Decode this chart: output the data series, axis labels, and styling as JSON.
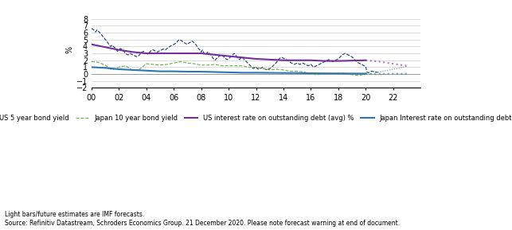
{
  "title": "",
  "ylabel": "%",
  "ylim": [
    -2,
    9
  ],
  "yticks": [
    -2,
    -1,
    0,
    1,
    2,
    3,
    4,
    5,
    6,
    7,
    8
  ],
  "xlim": [
    2000,
    2024
  ],
  "xticks": [
    2000,
    2002,
    2004,
    2006,
    2008,
    2010,
    2012,
    2014,
    2016,
    2018,
    2020,
    2022
  ],
  "xticklabels": [
    "00",
    "02",
    "04",
    "06",
    "08",
    "10",
    "12",
    "14",
    "16",
    "18",
    "20",
    "22"
  ],
  "background_color": "#ffffff",
  "grid_color": "#cccccc",
  "footnote1": "Light bars/future estimates are IMF forecasts.",
  "footnote2": "Source: Refinitiv Datastream, Schroders Economics Group. 21 December 2020. Please note forecast warning at end of document.",
  "legend_items": [
    {
      "label": "US 5 year bond yield",
      "color": "#1f3864",
      "linestyle": "dashed"
    },
    {
      "label": "Japan 10 year bond yield",
      "color": "#70ad47",
      "linestyle": "dashed"
    },
    {
      "label": "US interest rate on outstanding debt (avg) %",
      "color": "#7030a0",
      "linestyle": "solid"
    },
    {
      "label": "Japan Interest rate on outstanding debt (avg)",
      "color": "#2e75b6",
      "linestyle": "solid"
    }
  ],
  "us_5yr_yield": {
    "years": [
      2000.0,
      2000.1,
      2000.2,
      2000.3,
      2000.4,
      2000.5,
      2000.6,
      2000.7,
      2000.8,
      2000.9,
      2001.0,
      2001.1,
      2001.2,
      2001.3,
      2001.4,
      2001.5,
      2001.6,
      2001.7,
      2001.8,
      2001.9,
      2002.0,
      2002.1,
      2002.2,
      2002.3,
      2002.4,
      2002.5,
      2002.6,
      2002.7,
      2002.8,
      2002.9,
      2003.0,
      2003.1,
      2003.2,
      2003.3,
      2003.4,
      2003.5,
      2003.6,
      2003.7,
      2003.8,
      2003.9,
      2004.0,
      2004.1,
      2004.2,
      2004.3,
      2004.4,
      2004.5,
      2004.6,
      2004.7,
      2004.8,
      2004.9,
      2005.0,
      2005.1,
      2005.2,
      2005.3,
      2005.4,
      2005.5,
      2005.6,
      2005.7,
      2005.8,
      2005.9,
      2006.0,
      2006.1,
      2006.2,
      2006.3,
      2006.4,
      2006.5,
      2006.6,
      2006.7,
      2006.8,
      2006.9,
      2007.0,
      2007.1,
      2007.2,
      2007.3,
      2007.4,
      2007.5,
      2007.6,
      2007.7,
      2007.8,
      2007.9,
      2008.0,
      2008.1,
      2008.2,
      2008.3,
      2008.4,
      2008.5,
      2008.6,
      2008.7,
      2008.8,
      2008.9,
      2009.0,
      2009.1,
      2009.2,
      2009.3,
      2009.4,
      2009.5,
      2009.6,
      2009.7,
      2009.8,
      2009.9,
      2010.0,
      2010.1,
      2010.2,
      2010.3,
      2010.4,
      2010.5,
      2010.6,
      2010.7,
      2010.8,
      2010.9,
      2011.0,
      2011.1,
      2011.2,
      2011.3,
      2011.4,
      2011.5,
      2011.6,
      2011.7,
      2011.8,
      2011.9,
      2012.0,
      2012.1,
      2012.2,
      2012.3,
      2012.4,
      2012.5,
      2012.6,
      2012.7,
      2012.8,
      2012.9,
      2013.0,
      2013.1,
      2013.2,
      2013.3,
      2013.4,
      2013.5,
      2013.6,
      2013.7,
      2013.8,
      2013.9,
      2014.0,
      2014.1,
      2014.2,
      2014.3,
      2014.4,
      2014.5,
      2014.6,
      2014.7,
      2014.8,
      2014.9,
      2015.0,
      2015.1,
      2015.2,
      2015.3,
      2015.4,
      2015.5,
      2015.6,
      2015.7,
      2015.8,
      2015.9,
      2016.0,
      2016.1,
      2016.2,
      2016.3,
      2016.4,
      2016.5,
      2016.6,
      2016.7,
      2016.8,
      2016.9,
      2017.0,
      2017.1,
      2017.2,
      2017.3,
      2017.4,
      2017.5,
      2017.6,
      2017.7,
      2017.8,
      2017.9,
      2018.0,
      2018.1,
      2018.2,
      2018.3,
      2018.4,
      2018.5,
      2018.6,
      2018.7,
      2018.8,
      2018.9,
      2019.0,
      2019.1,
      2019.2,
      2019.3,
      2019.4,
      2019.5,
      2019.6,
      2019.7,
      2019.8,
      2019.9,
      2020.0,
      2020.1,
      2020.2,
      2020.3,
      2020.4,
      2020.5,
      2020.6,
      2020.7,
      2020.8,
      2020.9
    ],
    "values": [
      6.6,
      6.5,
      6.3,
      6.1,
      6.4,
      6.2,
      6.0,
      5.8,
      5.5,
      5.3,
      5.0,
      4.8,
      4.5,
      4.2,
      4.0,
      4.2,
      4.0,
      3.8,
      3.5,
      3.3,
      3.5,
      3.7,
      3.6,
      3.4,
      3.2,
      3.0,
      2.8,
      2.8,
      3.0,
      2.9,
      2.8,
      2.7,
      2.6,
      2.5,
      2.6,
      2.8,
      3.0,
      3.2,
      3.3,
      3.1,
      3.0,
      2.9,
      3.1,
      3.3,
      3.5,
      3.5,
      3.4,
      3.3,
      3.2,
      3.3,
      3.4,
      3.5,
      3.6,
      3.6,
      3.5,
      3.7,
      3.8,
      4.0,
      4.1,
      4.2,
      4.3,
      4.4,
      4.6,
      4.8,
      5.0,
      4.9,
      4.8,
      4.6,
      4.5,
      4.4,
      4.3,
      4.5,
      4.6,
      4.8,
      4.7,
      4.5,
      4.3,
      4.0,
      3.7,
      3.5,
      3.2,
      3.5,
      3.0,
      2.8,
      3.0,
      3.2,
      3.0,
      2.8,
      2.5,
      2.2,
      2.0,
      2.2,
      2.4,
      2.6,
      2.7,
      2.8,
      2.6,
      2.4,
      2.2,
      2.1,
      2.2,
      2.4,
      2.6,
      2.8,
      3.0,
      2.8,
      2.5,
      2.3,
      2.1,
      2.3,
      2.4,
      2.2,
      2.0,
      1.8,
      1.6,
      1.4,
      1.2,
      1.0,
      0.8,
      0.9,
      1.0,
      0.8,
      0.7,
      0.8,
      0.9,
      1.0,
      0.8,
      0.7,
      0.6,
      0.7,
      0.8,
      0.9,
      1.1,
      1.3,
      1.5,
      1.7,
      2.0,
      2.2,
      2.4,
      2.4,
      2.3,
      2.2,
      2.1,
      2.0,
      1.8,
      1.7,
      1.6,
      1.5,
      1.4,
      1.5,
      1.6,
      1.5,
      1.4,
      1.5,
      1.6,
      1.5,
      1.4,
      1.3,
      1.2,
      1.3,
      1.4,
      1.2,
      1.0,
      1.1,
      1.2,
      1.3,
      1.4,
      1.5,
      1.6,
      1.7,
      1.8,
      1.9,
      2.0,
      2.1,
      2.0,
      1.9,
      1.8,
      1.9,
      2.0,
      2.1,
      2.2,
      2.4,
      2.6,
      2.8,
      2.9,
      3.0,
      2.9,
      2.8,
      2.7,
      2.6,
      2.5,
      2.3,
      2.1,
      1.9,
      1.7,
      1.6,
      1.5,
      1.4,
      1.3,
      1.2,
      1.1,
      0.3,
      0.2,
      0.3,
      0.4,
      0.4,
      0.35,
      0.3,
      0.28,
      0.25
    ]
  },
  "us_5yr_yield_forecast": {
    "years": [
      2020.9,
      2021.0,
      2021.5,
      2022.0,
      2022.5,
      2023.0
    ],
    "values": [
      0.25,
      0.3,
      0.5,
      0.7,
      0.9,
      1.1
    ]
  },
  "japan_10yr_yield": {
    "years": [
      2000.0,
      2000.5,
      2001.0,
      2001.5,
      2002.0,
      2002.5,
      2003.0,
      2003.5,
      2004.0,
      2004.5,
      2005.0,
      2005.5,
      2006.0,
      2006.5,
      2007.0,
      2007.5,
      2008.0,
      2008.5,
      2009.0,
      2009.5,
      2010.0,
      2010.5,
      2011.0,
      2011.5,
      2012.0,
      2012.5,
      2013.0,
      2013.5,
      2014.0,
      2014.5,
      2015.0,
      2015.5,
      2016.0,
      2016.5,
      2017.0,
      2017.5,
      2018.0,
      2018.5,
      2019.0,
      2019.5,
      2020.0,
      2020.5,
      2020.9
    ],
    "values": [
      1.8,
      1.7,
      1.3,
      0.6,
      1.0,
      1.2,
      0.5,
      0.7,
      1.5,
      1.4,
      1.3,
      1.4,
      1.6,
      1.8,
      1.6,
      1.5,
      1.3,
      1.3,
      1.4,
      1.2,
      1.2,
      1.2,
      1.2,
      1.0,
      1.0,
      0.8,
      0.6,
      0.7,
      0.6,
      0.4,
      0.4,
      0.3,
      0.0,
      -0.1,
      0.1,
      0.05,
      0.1,
      0.1,
      -0.1,
      -0.2,
      0.0,
      0.0,
      -0.1
    ]
  },
  "japan_10yr_forecast": {
    "years": [
      2020.9,
      2021.5,
      2022.5,
      2023.0
    ],
    "values": [
      -0.1,
      -0.05,
      0.0,
      0.0
    ]
  },
  "us_interest_rate": {
    "years": [
      2000,
      2001,
      2002,
      2003,
      2004,
      2005,
      2006,
      2007,
      2008,
      2009,
      2010,
      2011,
      2012,
      2013,
      2014,
      2015,
      2016,
      2017,
      2018,
      2019,
      2020
    ],
    "values": [
      4.3,
      3.9,
      3.5,
      3.2,
      3.0,
      3.0,
      3.0,
      3.0,
      3.0,
      2.8,
      2.6,
      2.4,
      2.2,
      2.1,
      2.0,
      2.0,
      2.0,
      1.9,
      1.9,
      1.95,
      2.0
    ]
  },
  "us_interest_forecast": {
    "years": [
      2020,
      2021,
      2022,
      2023
    ],
    "values": [
      2.0,
      1.8,
      1.5,
      1.2
    ]
  },
  "japan_interest_rate": {
    "years": [
      2000,
      2001,
      2002,
      2003,
      2004,
      2005,
      2006,
      2007,
      2008,
      2009,
      2010,
      2011,
      2012,
      2013,
      2014,
      2015,
      2016,
      2017,
      2018,
      2019,
      2020
    ],
    "values": [
      1.0,
      0.9,
      0.7,
      0.6,
      0.5,
      0.4,
      0.4,
      0.35,
      0.35,
      0.3,
      0.25,
      0.2,
      0.2,
      0.18,
      0.16,
      0.15,
      0.12,
      0.1,
      0.09,
      0.08,
      0.07
    ]
  },
  "japan_interest_forecast": {
    "years": [
      2020,
      2021,
      2022,
      2023
    ],
    "values": [
      0.07,
      0.06,
      0.05,
      0.05
    ]
  }
}
